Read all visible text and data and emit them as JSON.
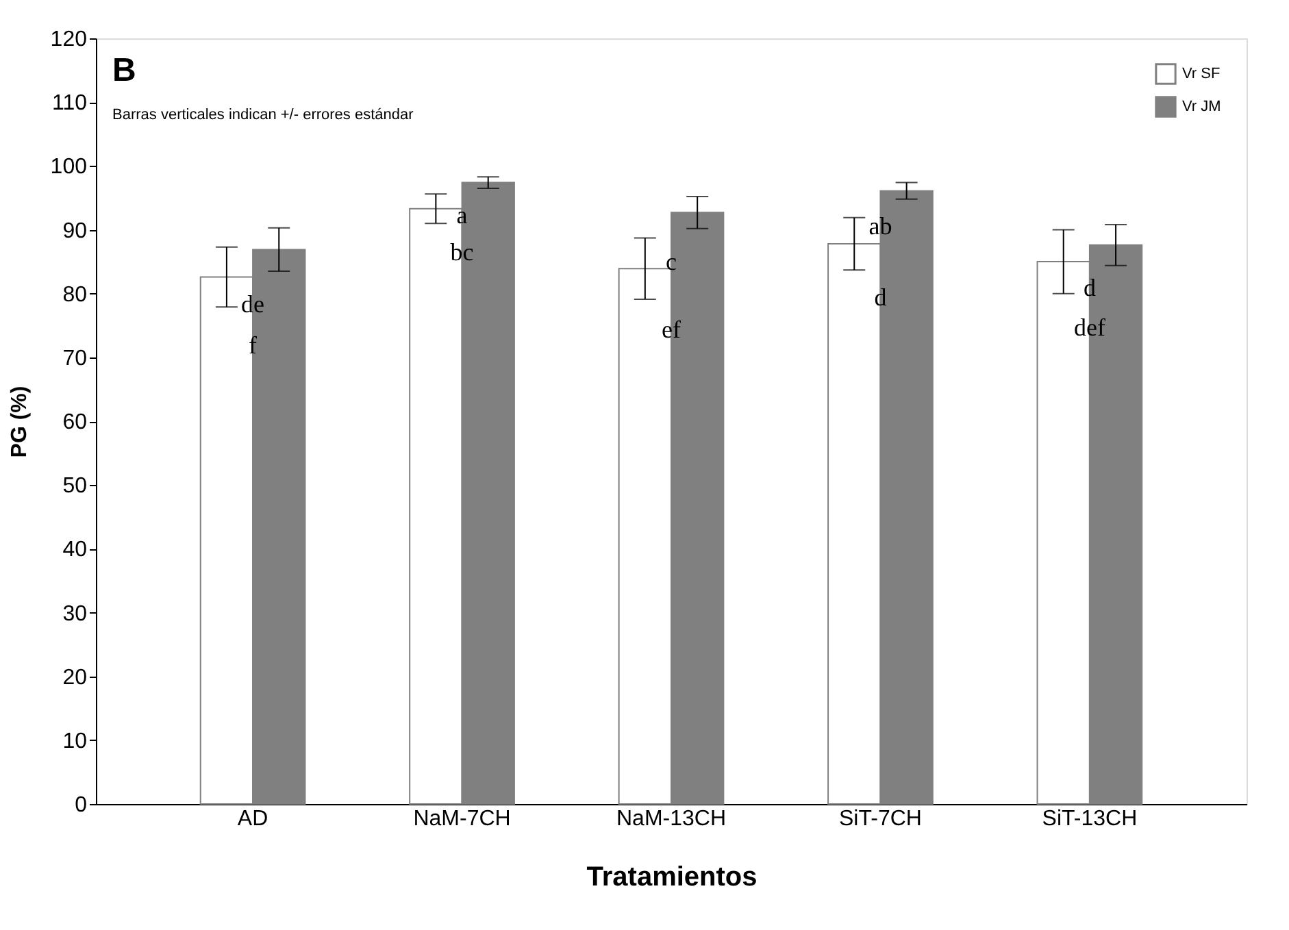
{
  "chart_data": {
    "type": "bar",
    "xlabel": "Tratamientos",
    "ylabel": "PG (%)",
    "categories": [
      "AD",
      "NaM-7CH",
      "NaM-13CH",
      "SiT-7CH",
      "SiT-13CH"
    ],
    "series": [
      {
        "name": "Vr SF",
        "color": "#ffffff",
        "values": [
          82.6,
          93.3,
          83.9,
          87.8,
          85.0
        ],
        "errors": [
          4.7,
          2.3,
          4.8,
          4.1,
          5.0
        ]
      },
      {
        "name": "Vr JM",
        "color": "#808080",
        "values": [
          86.9,
          97.4,
          92.7,
          96.1,
          87.6
        ],
        "errors": [
          3.4,
          0.9,
          2.5,
          1.3,
          3.2
        ]
      }
    ],
    "ylim": [
      0,
      120
    ],
    "yticks": [
      0,
      10,
      20,
      30,
      40,
      50,
      60,
      70,
      80,
      90,
      100,
      110,
      120
    ],
    "grid": false,
    "legend": "top right",
    "annotations": [
      "B",
      "Barras verticales indican +/- errores estándar",
      {
        "text": "f",
        "x": "AD",
        "y": 71.7
      },
      {
        "text": "de",
        "x": "AD",
        "y": 78.1
      },
      {
        "text": "bc",
        "x": "NaM-7CH",
        "y": 86.3
      },
      {
        "text": "a",
        "x": "NaM-7CH",
        "y": 92.1
      },
      {
        "text": "ef",
        "x": "NaM-13CH",
        "y": 74.2
      },
      {
        "text": "c",
        "x": "NaM-13CH",
        "y": 84.8
      },
      {
        "text": "d",
        "x": "SiT-7CH",
        "y": 79.2
      },
      {
        "text": "ab",
        "x": "SiT-7CH",
        "y": 90.4
      },
      {
        "text": "def",
        "x": "SiT-13CH",
        "y": 74.5
      },
      {
        "text": "d",
        "x": "SiT-13CH",
        "y": 80.7
      }
    ]
  }
}
